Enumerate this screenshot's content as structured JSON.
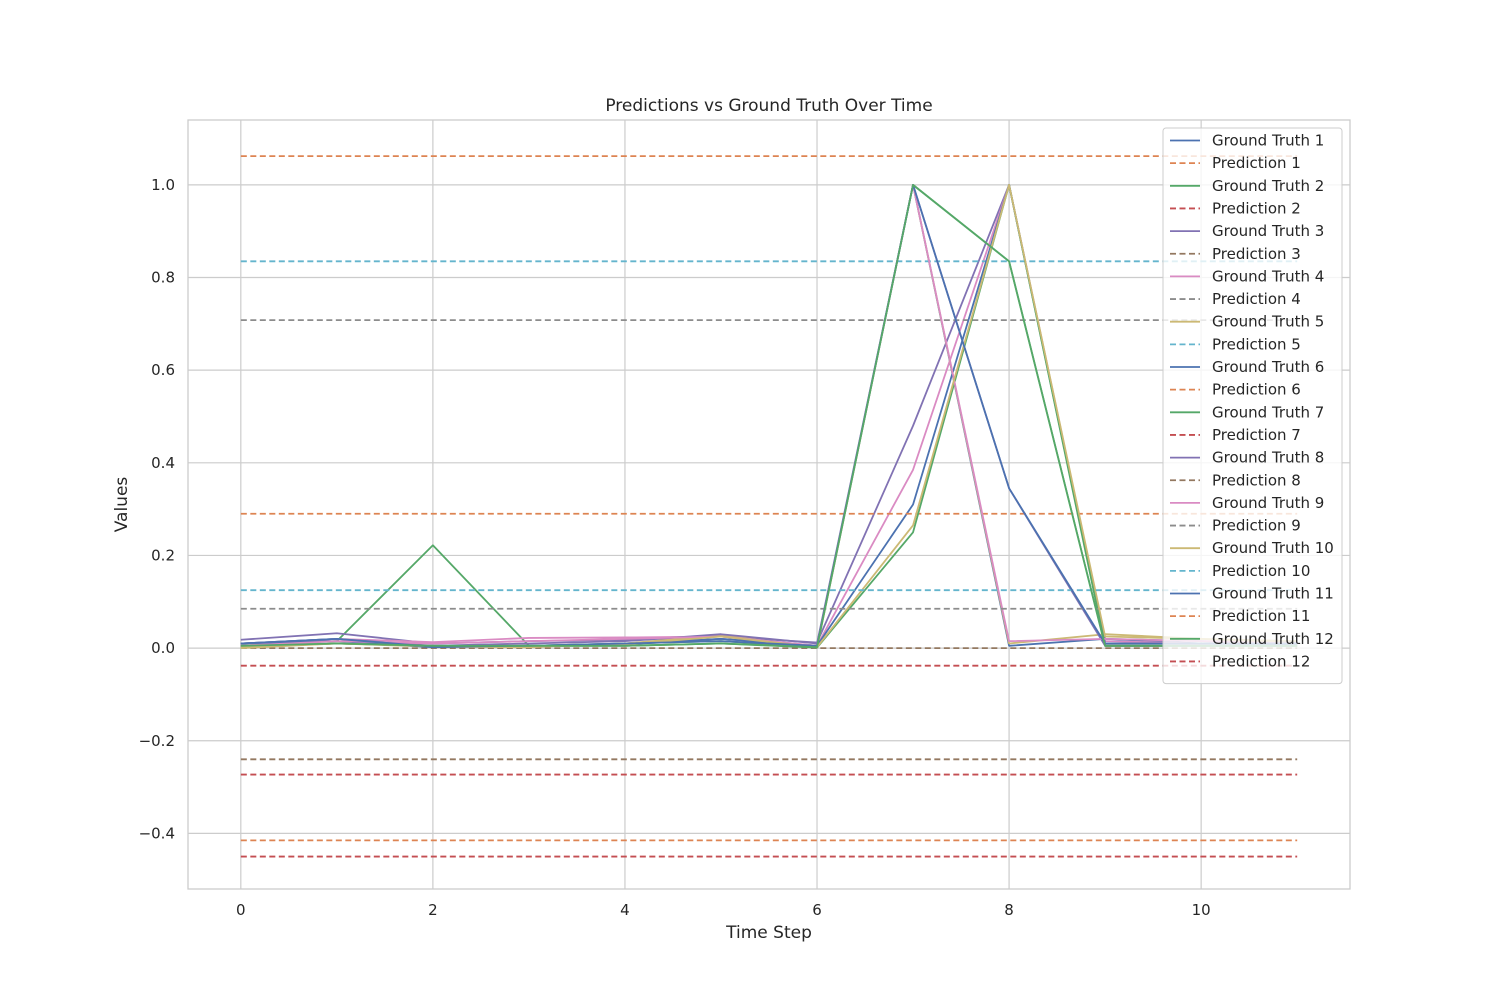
{
  "chart_data": {
    "type": "line",
    "title": "Predictions vs Ground Truth Over Time",
    "xlabel": "Time Step",
    "ylabel": "Values",
    "xlim": [
      -0.55,
      11.55
    ],
    "ylim": [
      -0.52,
      1.14
    ],
    "xticks": [
      0,
      2,
      4,
      6,
      8,
      10
    ],
    "yticks": [
      -0.4,
      -0.2,
      0.0,
      0.2,
      0.4,
      0.6,
      0.8,
      1.0
    ],
    "ytick_labels": [
      "−0.4",
      "−0.2",
      "0.0",
      "0.2",
      "0.4",
      "0.6",
      "0.8",
      "1.0"
    ],
    "grid": true,
    "legend_position": "top-right",
    "x": [
      0,
      1,
      2,
      3,
      4,
      5,
      6,
      7,
      8,
      9,
      10,
      11
    ],
    "series": [
      {
        "name": "Ground Truth 1",
        "style": "solid",
        "color": "#4c72b0",
        "values": [
          0.01,
          0.02,
          0.003,
          0.005,
          0.01,
          0.02,
          0.005,
          1.0,
          0.005,
          0.02,
          0.01,
          0.01
        ]
      },
      {
        "name": "Prediction 1",
        "style": "dashed",
        "color": "#dd8452",
        "values": [
          1.062,
          1.062,
          1.062,
          1.062,
          1.062,
          1.062,
          1.062,
          1.062,
          1.062,
          1.062,
          1.062,
          1.062
        ]
      },
      {
        "name": "Ground Truth 2",
        "style": "solid",
        "color": "#55a868",
        "values": [
          0.005,
          0.015,
          0.222,
          0.005,
          0.01,
          0.015,
          0.002,
          1.0,
          0.835,
          0.005,
          0.005,
          0.005
        ]
      },
      {
        "name": "Prediction 2",
        "style": "dashed",
        "color": "#c44e52",
        "values": [
          -0.45,
          -0.45,
          -0.45,
          -0.45,
          -0.45,
          -0.45,
          -0.45,
          -0.45,
          -0.45,
          -0.45,
          -0.45,
          -0.45
        ]
      },
      {
        "name": "Ground Truth 3",
        "style": "solid",
        "color": "#8172b3",
        "values": [
          0.018,
          0.032,
          0.01,
          0.015,
          0.018,
          0.025,
          0.012,
          0.48,
          1.0,
          0.02,
          0.015,
          0.012
        ]
      },
      {
        "name": "Prediction 3",
        "style": "dashed",
        "color": "#937860",
        "values": [
          0.0,
          0.0,
          0.0,
          0.0,
          0.0,
          0.0,
          0.0,
          0.0,
          0.0,
          0.0,
          0.0,
          0.0
        ]
      },
      {
        "name": "Ground Truth 4",
        "style": "solid",
        "color": "#da8bc3",
        "values": [
          0.005,
          0.02,
          0.013,
          0.022,
          0.023,
          0.025,
          0.005,
          0.385,
          1.0,
          0.015,
          0.01,
          0.01
        ]
      },
      {
        "name": "Prediction 4",
        "style": "dashed",
        "color": "#8c8c8c",
        "values": [
          0.708,
          0.708,
          0.708,
          0.708,
          0.708,
          0.708,
          0.708,
          0.708,
          0.708,
          0.708,
          0.708,
          0.708
        ]
      },
      {
        "name": "Ground Truth 5",
        "style": "solid",
        "color": "#ccb974",
        "values": [
          0.0,
          0.01,
          0.003,
          0.002,
          0.01,
          0.028,
          0.001,
          1.0,
          0.01,
          0.03,
          0.02,
          0.01
        ]
      },
      {
        "name": "Prediction 5",
        "style": "dashed",
        "color": "#64b5cd",
        "values": [
          0.835,
          0.835,
          0.835,
          0.835,
          0.835,
          0.835,
          0.835,
          0.835,
          0.835,
          0.835,
          0.835,
          0.835
        ]
      },
      {
        "name": "Ground Truth 6",
        "style": "solid",
        "color": "#4c72b0",
        "values": [
          0.01,
          0.015,
          0.002,
          0.005,
          0.008,
          0.02,
          0.005,
          0.31,
          1.0,
          0.01,
          0.01,
          0.008
        ]
      },
      {
        "name": "Prediction 6",
        "style": "dashed",
        "color": "#dd8452",
        "values": [
          0.29,
          0.29,
          0.29,
          0.29,
          0.29,
          0.29,
          0.29,
          0.29,
          0.29,
          0.29,
          0.29,
          0.29
        ]
      },
      {
        "name": "Ground Truth 7",
        "style": "solid",
        "color": "#55a868",
        "values": [
          0.005,
          0.01,
          0.005,
          0.005,
          0.005,
          0.01,
          0.001,
          0.25,
          1.0,
          0.005,
          0.005,
          0.005
        ]
      },
      {
        "name": "Prediction 7",
        "style": "dashed",
        "color": "#c44e52",
        "values": [
          -0.273,
          -0.273,
          -0.273,
          -0.273,
          -0.273,
          -0.273,
          -0.273,
          -0.273,
          -0.273,
          -0.273,
          -0.273,
          -0.273
        ]
      },
      {
        "name": "Ground Truth 8",
        "style": "solid",
        "color": "#8172b3",
        "values": [
          0.01,
          0.02,
          0.005,
          0.01,
          0.015,
          0.03,
          0.01,
          1.0,
          0.345,
          0.005,
          0.005,
          0.005
        ]
      },
      {
        "name": "Prediction 8",
        "style": "dashed",
        "color": "#937860",
        "values": [
          -0.24,
          -0.24,
          -0.24,
          -0.24,
          -0.24,
          -0.24,
          -0.24,
          -0.24,
          -0.24,
          -0.24,
          -0.24,
          -0.24
        ]
      },
      {
        "name": "Ground Truth 9",
        "style": "solid",
        "color": "#da8bc3",
        "values": [
          0.005,
          0.015,
          0.01,
          0.015,
          0.02,
          0.025,
          0.005,
          1.0,
          0.015,
          0.02,
          0.015,
          0.01
        ]
      },
      {
        "name": "Prediction 9",
        "style": "dashed",
        "color": "#8c8c8c",
        "values": [
          0.085,
          0.085,
          0.085,
          0.085,
          0.085,
          0.085,
          0.085,
          0.085,
          0.085,
          0.085,
          0.085,
          0.085
        ]
      },
      {
        "name": "Ground Truth 10",
        "style": "solid",
        "color": "#ccb974",
        "values": [
          0.002,
          0.01,
          0.004,
          0.003,
          0.008,
          0.025,
          0.002,
          0.265,
          1.0,
          0.025,
          0.02,
          0.015
        ]
      },
      {
        "name": "Prediction 10",
        "style": "dashed",
        "color": "#64b5cd",
        "values": [
          0.125,
          0.125,
          0.125,
          0.125,
          0.125,
          0.125,
          0.125,
          0.125,
          0.125,
          0.125,
          0.125,
          0.125
        ]
      },
      {
        "name": "Ground Truth 11",
        "style": "solid",
        "color": "#4c72b0",
        "values": [
          0.01,
          0.02,
          0.003,
          0.005,
          0.01,
          0.015,
          0.005,
          1.0,
          0.345,
          0.01,
          0.01,
          0.01
        ]
      },
      {
        "name": "Prediction 11",
        "style": "dashed",
        "color": "#dd8452",
        "values": [
          -0.415,
          -0.415,
          -0.415,
          -0.415,
          -0.415,
          -0.415,
          -0.415,
          -0.415,
          -0.415,
          -0.415,
          -0.415,
          -0.415
        ]
      },
      {
        "name": "Ground Truth 12",
        "style": "solid",
        "color": "#55a868",
        "values": [
          0.005,
          0.01,
          0.005,
          0.005,
          0.005,
          0.01,
          0.002,
          1.0,
          0.835,
          0.005,
          0.005,
          0.005
        ]
      },
      {
        "name": "Prediction 12",
        "style": "dashed",
        "color": "#c44e52",
        "values": [
          -0.038,
          -0.038,
          -0.038,
          -0.038,
          -0.038,
          -0.038,
          -0.038,
          -0.038,
          -0.038,
          -0.038,
          -0.038,
          -0.038
        ]
      }
    ]
  }
}
